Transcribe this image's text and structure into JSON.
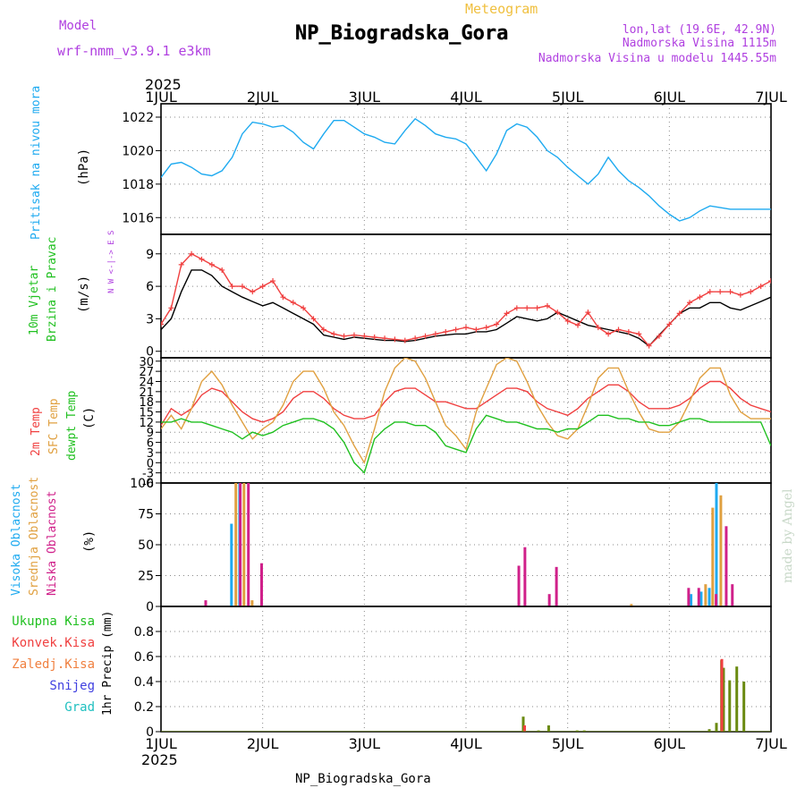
{
  "header": {
    "model_label": "Model",
    "model_name": "wrf-nmm_v3.9.1 e3km",
    "subtitle": "Meteogram",
    "station": "NP_Biogradska_Gora",
    "lonlat": "lon,lat (19.6E, 42.9N)",
    "elevation": "Nadmorska Visina 1115m",
    "model_elevation": "Nadmorska Visina u modelu 1445.55m",
    "footer_station": "NP_Biogradska_Gora",
    "watermark": "made by Angel"
  },
  "colors": {
    "purple": "#b040e0",
    "orange": "#f0c040",
    "blue": "#1eaaf0",
    "green": "#20c020",
    "red": "#f04040",
    "tan": "#e0a040",
    "magenta": "#d0208a",
    "olive": "#6a8a10",
    "grid": "#888888"
  },
  "chart_data": [
    {
      "id": "pressure",
      "type": "line",
      "ylabel": "Pritisak na nivou mora",
      "unit": "(hPa)",
      "ylim": [
        1015,
        1022.8
      ],
      "yticks": [
        1016,
        1018,
        1020,
        1022
      ],
      "x_days": [
        0,
        0.1,
        0.2,
        0.3,
        0.4,
        0.5,
        0.6,
        0.7,
        0.8,
        0.9,
        1.0,
        1.1,
        1.2,
        1.3,
        1.4,
        1.5,
        1.6,
        1.7,
        1.8,
        1.9,
        2.0,
        2.1,
        2.2,
        2.3,
        2.4,
        2.5,
        2.6,
        2.7,
        2.8,
        2.9,
        3.0,
        3.1,
        3.2,
        3.3,
        3.4,
        3.5,
        3.6,
        3.7,
        3.8,
        3.9,
        4.0,
        4.1,
        4.2,
        4.3,
        4.4,
        4.5,
        4.6,
        4.7,
        4.8,
        4.9,
        5.0,
        5.1,
        5.2,
        5.3,
        5.4,
        5.5,
        5.6,
        5.7,
        5.8,
        5.9,
        6.0
      ],
      "series": [
        {
          "name": "Pritisak",
          "color": "#1eaaf0",
          "values": [
            1018.4,
            1019.2,
            1019.3,
            1019.0,
            1018.6,
            1018.5,
            1018.8,
            1019.6,
            1021.0,
            1021.7,
            1021.6,
            1021.4,
            1021.5,
            1021.1,
            1020.5,
            1020.1,
            1021.0,
            1021.8,
            1021.8,
            1021.4,
            1021.0,
            1020.8,
            1020.5,
            1020.4,
            1021.2,
            1021.9,
            1021.5,
            1021.0,
            1020.8,
            1020.7,
            1020.4,
            1019.6,
            1018.8,
            1019.8,
            1021.2,
            1021.6,
            1021.4,
            1020.8,
            1020.0,
            1019.6,
            1019.0,
            1018.5,
            1018.0,
            1018.6,
            1019.6,
            1018.8,
            1018.2,
            1017.8,
            1017.3,
            1016.7,
            1016.2,
            1015.8,
            1016.0,
            1016.4,
            1016.7,
            1016.6,
            1016.5,
            1016.5,
            1016.5,
            1016.5,
            1016.5
          ]
        }
      ]
    },
    {
      "id": "wind",
      "type": "line",
      "ylabel": "10m Vjetar Brzina i Pravac",
      "unit": "(m/s)",
      "ylim": [
        -0.6,
        10.8
      ],
      "yticks": [
        0,
        3,
        6,
        9
      ],
      "compass_label": "N  W <-|-> E  S",
      "x_days": [
        0,
        0.1,
        0.2,
        0.3,
        0.4,
        0.5,
        0.6,
        0.7,
        0.8,
        0.9,
        1.0,
        1.1,
        1.2,
        1.3,
        1.4,
        1.5,
        1.6,
        1.7,
        1.8,
        1.9,
        2.0,
        2.1,
        2.2,
        2.3,
        2.4,
        2.5,
        2.6,
        2.7,
        2.8,
        2.9,
        3.0,
        3.1,
        3.2,
        3.3,
        3.4,
        3.5,
        3.6,
        3.7,
        3.8,
        3.9,
        4.0,
        4.1,
        4.2,
        4.3,
        4.4,
        4.5,
        4.6,
        4.7,
        4.8,
        4.9,
        5.0,
        5.1,
        5.2,
        5.3,
        5.4,
        5.5,
        5.6,
        5.7,
        5.8,
        5.9,
        6.0
      ],
      "series": [
        {
          "name": "Brzina",
          "color": "#000000",
          "values": [
            2.0,
            3.0,
            5.5,
            7.5,
            7.5,
            7.0,
            6.0,
            5.5,
            5.0,
            4.6,
            4.2,
            4.5,
            4.0,
            3.5,
            3.0,
            2.5,
            1.5,
            1.3,
            1.1,
            1.3,
            1.2,
            1.1,
            1.0,
            1.0,
            0.9,
            1.0,
            1.2,
            1.4,
            1.5,
            1.6,
            1.6,
            1.8,
            1.8,
            2.0,
            2.6,
            3.2,
            3.0,
            2.8,
            3.0,
            3.6,
            3.2,
            2.8,
            2.4,
            2.2,
            2.0,
            1.8,
            1.6,
            1.2,
            0.5,
            1.5,
            2.5,
            3.5,
            4.0,
            4.0,
            4.5,
            4.5,
            4.0,
            3.8,
            4.2,
            4.6,
            5.0
          ]
        },
        {
          "name": "Udari",
          "color": "#f04040",
          "values": [
            2.5,
            4.0,
            8.0,
            9.0,
            8.5,
            8.0,
            7.5,
            6.0,
            6.0,
            5.5,
            6.0,
            6.5,
            5.0,
            4.5,
            4.0,
            3.0,
            2.0,
            1.6,
            1.4,
            1.5,
            1.4,
            1.3,
            1.2,
            1.1,
            1.0,
            1.2,
            1.4,
            1.6,
            1.8,
            2.0,
            2.2,
            2.0,
            2.2,
            2.5,
            3.5,
            4.0,
            4.0,
            4.0,
            4.2,
            3.6,
            2.8,
            2.4,
            3.6,
            2.2,
            1.6,
            2.0,
            1.8,
            1.6,
            0.5,
            1.4,
            2.5,
            3.5,
            4.5,
            5.0,
            5.5,
            5.5,
            5.5,
            5.2,
            5.5,
            6.0,
            6.5
          ]
        }
      ]
    },
    {
      "id": "temperature",
      "type": "line",
      "ylabel": [
        "2m Temp",
        "SFC Temp",
        "dewpt Temp"
      ],
      "unit": "(C)",
      "ylim": [
        -6,
        31
      ],
      "yticks": [
        -6,
        -3,
        0,
        3,
        6,
        9,
        12,
        15,
        18,
        21,
        24,
        27,
        30
      ],
      "ytick_labels": [
        "-6",
        "-3",
        "0",
        "3",
        "6",
        "9",
        "12",
        "15",
        "18",
        "21",
        "24",
        "27",
        "30"
      ],
      "x_days": [
        0,
        0.1,
        0.2,
        0.3,
        0.4,
        0.5,
        0.6,
        0.7,
        0.8,
        0.9,
        1.0,
        1.1,
        1.2,
        1.3,
        1.4,
        1.5,
        1.6,
        1.7,
        1.8,
        1.9,
        2.0,
        2.1,
        2.2,
        2.3,
        2.4,
        2.5,
        2.6,
        2.7,
        2.8,
        2.9,
        3.0,
        3.1,
        3.2,
        3.3,
        3.4,
        3.5,
        3.6,
        3.7,
        3.8,
        3.9,
        4.0,
        4.1,
        4.2,
        4.3,
        4.4,
        4.5,
        4.6,
        4.7,
        4.8,
        4.9,
        5.0,
        5.1,
        5.2,
        5.3,
        5.4,
        5.5,
        5.6,
        5.7,
        5.8,
        5.9,
        6.0
      ],
      "series": [
        {
          "name": "2m Temp",
          "color": "#f04040",
          "values": [
            11,
            16,
            14,
            16,
            20,
            22,
            21,
            18,
            15,
            13,
            12,
            13,
            15,
            19,
            21,
            21,
            19,
            16,
            14,
            13,
            13,
            14,
            18,
            21,
            22,
            22,
            20,
            18,
            18,
            17,
            16,
            16,
            18,
            20,
            22,
            22,
            21,
            18,
            16,
            15,
            14,
            16,
            19,
            21,
            23,
            23,
            21,
            18,
            16,
            16,
            16,
            17,
            19,
            22,
            24,
            24,
            22,
            19,
            17,
            16,
            15
          ]
        },
        {
          "name": "SFC Temp",
          "color": "#e0a040",
          "values": [
            10,
            14,
            10,
            16,
            24,
            27,
            23,
            17,
            12,
            7,
            10,
            12,
            17,
            24,
            27,
            27,
            22,
            15,
            11,
            5,
            0,
            10,
            21,
            28,
            31,
            30,
            25,
            18,
            11,
            8,
            4,
            15,
            22,
            29,
            31,
            30,
            24,
            17,
            12,
            8,
            7,
            10,
            17,
            25,
            28,
            28,
            21,
            15,
            10,
            9,
            9,
            12,
            18,
            25,
            28,
            28,
            20,
            15,
            13,
            13,
            13
          ]
        },
        {
          "name": "dewpt Temp",
          "color": "#20c020",
          "values": [
            12,
            12,
            13,
            12,
            12,
            11,
            10,
            9,
            7,
            9,
            8,
            9,
            11,
            12,
            13,
            13,
            12,
            10,
            6,
            0,
            -3,
            7,
            10,
            12,
            12,
            11,
            11,
            9,
            5,
            4,
            3,
            10,
            14,
            13,
            12,
            12,
            11,
            10,
            10,
            9,
            10,
            10,
            12,
            14,
            14,
            13,
            13,
            12,
            12,
            11,
            11,
            12,
            13,
            13,
            12,
            12,
            12,
            12,
            12,
            12,
            5
          ]
        }
      ]
    },
    {
      "id": "clouds",
      "type": "bar",
      "ylabel": [
        "Visoka Oblacnost",
        "Srednja Oblacnost",
        "Niska Oblacnost"
      ],
      "unit": "(%)",
      "ylim": [
        0,
        100
      ],
      "yticks": [
        0,
        25,
        50,
        75,
        100
      ],
      "series": [
        {
          "name": "Visoka Oblacnost",
          "color": "#1eaaf0",
          "x_days": [
            0.68,
            0.76,
            5.2,
            5.3,
            5.38,
            5.45
          ],
          "values": [
            67,
            100,
            10,
            12,
            15,
            100
          ]
        },
        {
          "name": "Srednja Oblacnost",
          "color": "#e0a040",
          "x_days": [
            0.71,
            0.79,
            0.87,
            4.6,
            5.33,
            5.4,
            5.48
          ],
          "values": [
            100,
            100,
            5,
            2,
            18,
            80,
            90
          ]
        },
        {
          "name": "Niska Oblacnost",
          "color": "#d0208a",
          "x_days": [
            0.4,
            0.74,
            0.82,
            0.95,
            3.48,
            3.54,
            3.78,
            3.85,
            5.15,
            5.25,
            5.42,
            5.52,
            5.58,
            6.0,
            6.03,
            6.38,
            6.43,
            6.55
          ],
          "values": [
            5,
            100,
            100,
            35,
            33,
            48,
            10,
            32,
            15,
            15,
            10,
            65,
            18,
            3,
            2,
            8,
            8,
            3
          ]
        }
      ]
    },
    {
      "id": "precip",
      "type": "bar",
      "ylabel": "1hr Precip",
      "unit": "(mm)",
      "ylim": [
        0,
        1.0
      ],
      "yticks": [
        0,
        0.2,
        0.4,
        0.6,
        0.8
      ],
      "ytick_labels": [
        "0",
        "0.2",
        "0.4",
        "0.6",
        "0.8"
      ],
      "legend": [
        "Ukupna Kisa",
        "Konvek.Kisa",
        "Zaledj.Kisa",
        "Snijeg",
        "Grad"
      ],
      "legend_colors": [
        "#20c020",
        "#f04040",
        "#f08040",
        "#4040e0",
        "#20c0c0"
      ],
      "series": [
        {
          "name": "Ukupna Kisa",
          "color": "#6a8a10",
          "x_days": [
            3.55,
            3.7,
            3.8,
            4.08,
            4.15,
            5.38,
            5.45,
            5.5,
            5.52,
            5.58,
            5.65,
            5.72
          ],
          "values": [
            0.12,
            0.01,
            0.05,
            0.01,
            0.01,
            0.02,
            0.07,
            0.57,
            0.51,
            0.41,
            0.52,
            0.4
          ]
        },
        {
          "name": "Konvek.Kisa",
          "color": "#f04040",
          "x_days": [
            3.55,
            5.49
          ],
          "values": [
            0.05,
            0.58
          ]
        }
      ]
    }
  ],
  "time_axis": {
    "year": "2025",
    "ticks": [
      "1JUL",
      "2JUL",
      "3JUL",
      "4JUL",
      "5JUL",
      "6JUL",
      "7JUL"
    ]
  }
}
